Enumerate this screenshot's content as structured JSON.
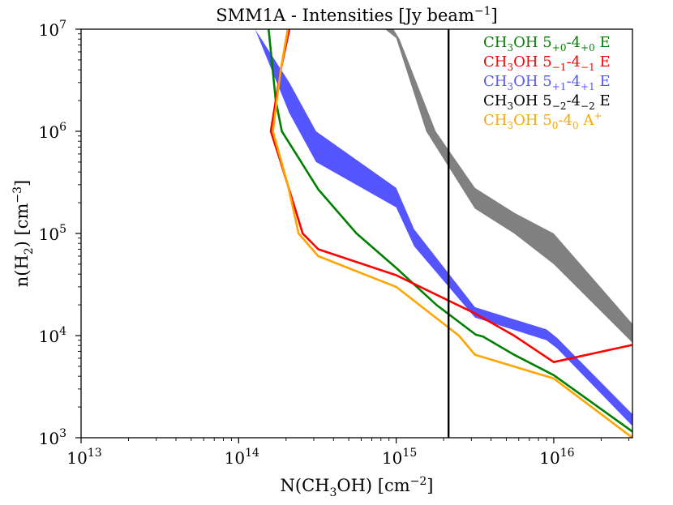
{
  "chart_data": {
    "type": "line",
    "title": "SMM1A - Intensities [Jy beam",
    "title_sup": "−1",
    "title_tail": "]",
    "xlabel": {
      "a": "N(CH",
      "s1": "3",
      "b": "OH) [cm",
      "p1": "−2",
      "c": "]"
    },
    "ylabel": {
      "a": "n(H",
      "s1": "2",
      "b": ") [cm",
      "p1": "−3",
      "c": "]"
    },
    "x_scale": "log",
    "y_scale": "log",
    "xlim": [
      10000000000000.0,
      3.16e+16
    ],
    "ylim": [
      1000.0,
      10000000.0
    ],
    "grid": false,
    "legend_position": "top-right",
    "x_ticks": [
      {
        "value": 10000000000000.0,
        "base": "10",
        "exp": "13"
      },
      {
        "value": 100000000000000.0,
        "base": "10",
        "exp": "14"
      },
      {
        "value": 1000000000000000.0,
        "base": "10",
        "exp": "15"
      },
      {
        "value": 1e+16,
        "base": "10",
        "exp": "16"
      }
    ],
    "y_ticks": [
      {
        "value": 1000.0,
        "base": "10",
        "exp": "3"
      },
      {
        "value": 10000.0,
        "base": "10",
        "exp": "4"
      },
      {
        "value": 100000.0,
        "base": "10",
        "exp": "5"
      },
      {
        "value": 1000000.0,
        "base": "10",
        "exp": "6"
      },
      {
        "value": 10000000.0,
        "base": "10",
        "exp": "7"
      }
    ],
    "vertical_line": {
      "x": 2150000000000000.0,
      "color": "#000000"
    },
    "series": [
      {
        "name": "CH3OH 5(+0)-4(+0) E",
        "label": {
          "a": "CH",
          "s1": "3",
          "b": "OH 5",
          "s2": "+0",
          "c": "-4",
          "s3": "+0",
          "d": " E"
        },
        "color": "#008000",
        "kind": "line",
        "points": [
          [
            155000000000000.0,
            10000000.0
          ],
          [
            172000000000000.0,
            2000000.0
          ],
          [
            188000000000000.0,
            1000000.0
          ],
          [
            240000000000000.0,
            550000.0
          ],
          [
            320000000000000.0,
            270000.0
          ],
          [
            560000000000000.0,
            100000.0
          ],
          [
            1000000000000000.0,
            46000.0
          ],
          [
            1800000000000000.0,
            20000.0
          ],
          [
            3200000000000000.0,
            10200.0
          ],
          [
            3550000000000000.0,
            9800.0
          ],
          [
            5600000000000000.0,
            6500.0
          ],
          [
            1e+16,
            4100.0
          ],
          [
            3.16e+16,
            1150.0
          ]
        ]
      },
      {
        "name": "CH3OH 5(-1)-4(-1) E",
        "label": {
          "a": "CH",
          "s1": "3",
          "b": "OH 5",
          "s2": "−1",
          "c": "-4",
          "s3": "−1",
          "d": " E"
        },
        "color": "#ff0000",
        "kind": "line",
        "points": [
          [
            210000000000000.0,
            10000000.0
          ],
          [
            185000000000000.0,
            4000000.0
          ],
          [
            160000000000000.0,
            1000000.0
          ],
          [
            185000000000000.0,
            500000.0
          ],
          [
            255000000000000.0,
            100000.0
          ],
          [
            320000000000000.0,
            70000.0
          ],
          [
            1000000000000000.0,
            39000.0
          ],
          [
            3160000000000000.0,
            16500.0
          ],
          [
            5600000000000000.0,
            10000.0
          ],
          [
            1e+16,
            5500.0
          ],
          [
            3.16e+16,
            8100.0
          ]
        ]
      },
      {
        "name": "CH3OH 5(+1)-4(+1) E",
        "label": {
          "a": "CH",
          "s1": "3",
          "b": "OH 5",
          "s2": "+1",
          "c": "-4",
          "s3": "+1",
          "d": " E"
        },
        "color": "#5555ff",
        "kind": "band",
        "upper": [
          [
            127000000000000.0,
            10000000.0
          ],
          [
            210000000000000.0,
            3000000.0
          ],
          [
            310000000000000.0,
            1000000.0
          ],
          [
            1000000000000000.0,
            280000.0
          ],
          [
            1300000000000000.0,
            110000.0
          ],
          [
            3160000000000000.0,
            19000.0
          ],
          [
            9000000000000000.0,
            11500.0
          ],
          [
            1.05e+16,
            9500.0
          ],
          [
            3.16e+16,
            1700.0
          ]
        ],
        "lower": [
          [
            127000000000000.0,
            10000000.0
          ],
          [
            210000000000000.0,
            1500000.0
          ],
          [
            310000000000000.0,
            500000.0
          ],
          [
            1000000000000000.0,
            180000.0
          ],
          [
            1300000000000000.0,
            75000.0
          ],
          [
            3160000000000000.0,
            15000.0
          ],
          [
            9000000000000000.0,
            9000.0
          ],
          [
            1.05e+16,
            7500.0
          ],
          [
            3.16e+16,
            1300.0
          ]
        ]
      },
      {
        "name": "CH3OH 5(-2)-4(-2) E",
        "label": {
          "a": "CH",
          "s1": "3",
          "b": "OH 5",
          "s2": "−2",
          "c": "-4",
          "s3": "−2",
          "d": " E"
        },
        "color": "#000000",
        "kind": "band",
        "band_color": "#808080",
        "upper": [
          [
            960000000000000.0,
            10000000.0
          ],
          [
            1050000000000000.0,
            8000000.0
          ],
          [
            1780000000000000.0,
            1000000.0
          ],
          [
            3160000000000000.0,
            280000.0
          ],
          [
            5600000000000000.0,
            160000.0
          ],
          [
            1e+16,
            100000.0
          ],
          [
            3.16e+16,
            13000.0
          ]
        ],
        "lower": [
          [
            850000000000000.0,
            10000000.0
          ],
          [
            1000000000000000.0,
            8200000.0
          ],
          [
            1550000000000000.0,
            1000000.0
          ],
          [
            3160000000000000.0,
            175000.0
          ],
          [
            5600000000000000.0,
            100000.0
          ],
          [
            1e+16,
            50000.0
          ],
          [
            3.16e+16,
            8500.0
          ]
        ]
      },
      {
        "name": "CH3OH 5(0)-4(0) A+",
        "label": {
          "a": "CH",
          "s1": "3",
          "b": "OH 5",
          "s2": "0",
          "c": "-4",
          "s3": "0",
          "d": " A",
          "p": "+"
        },
        "color": "#ffa500",
        "kind": "line",
        "points": [
          [
            205000000000000.0,
            10000000.0
          ],
          [
            185000000000000.0,
            4000000.0
          ],
          [
            165000000000000.0,
            1000000.0
          ],
          [
            205000000000000.0,
            300000.0
          ],
          [
            240000000000000.0,
            100000.0
          ],
          [
            320000000000000.0,
            60000.0
          ],
          [
            1000000000000000.0,
            30000.0
          ],
          [
            2500000000000000.0,
            10000.0
          ],
          [
            3160000000000000.0,
            6500.0
          ],
          [
            1e+16,
            3800.0
          ],
          [
            3.16e+16,
            1000.0
          ]
        ]
      }
    ]
  }
}
